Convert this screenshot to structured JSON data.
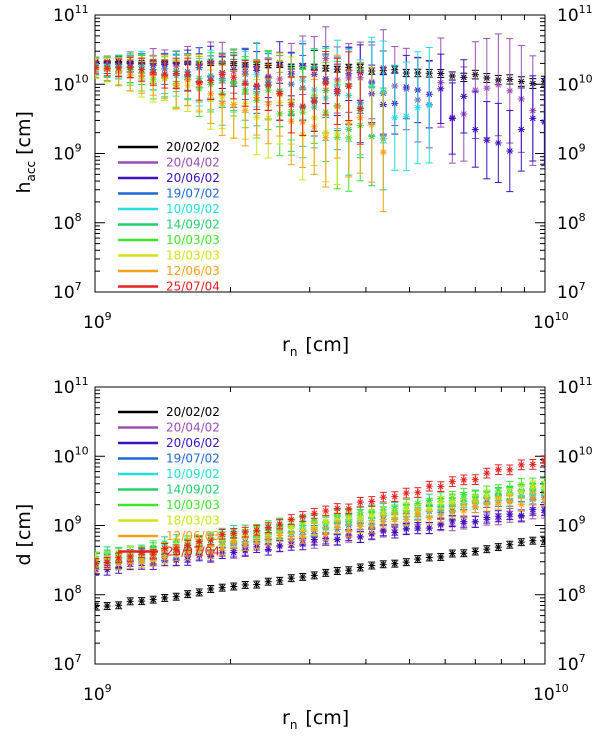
{
  "chart_data": [
    {
      "type": "scatter",
      "panel": "top",
      "title": "",
      "xlabel": "r",
      "xlabel_sub": "n",
      "xlabel_unit": "[cm]",
      "ylabel": "h",
      "ylabel_sub": "acc",
      "ylabel_unit": "[cm]",
      "xscale": "log",
      "yscale": "log",
      "xlim": [
        1000000000.0,
        10000000000.0
      ],
      "ylim": [
        10000000.0,
        100000000000.0
      ],
      "x_ticks": [
        {
          "base": "10",
          "exp": "9"
        },
        {
          "base": "10",
          "exp": "10"
        }
      ],
      "y_ticks": [
        {
          "base": "10",
          "exp": "7"
        },
        {
          "base": "10",
          "exp": "8"
        },
        {
          "base": "10",
          "exp": "9"
        },
        {
          "base": "10",
          "exp": "10"
        },
        {
          "base": "10",
          "exp": "11"
        }
      ],
      "legend_position": "bottom-left",
      "series": [
        {
          "name": "20/02/02",
          "color": "#000000",
          "y_start": 21000000000.0,
          "y_end": 10500000000.0,
          "curve": 2.0,
          "scatter": 0.02,
          "cutoff": 10000000000.0,
          "err": 0.04
        },
        {
          "name": "20/04/02",
          "color": "#9c4fb5",
          "y_start": 20000000000.0,
          "y_end": 2000000000.0,
          "curve": 3.0,
          "scatter": 0.25,
          "cutoff": 9500000000.0,
          "err": 0.45
        },
        {
          "name": "20/06/02",
          "color": "#3d10c4",
          "y_start": 20000000000.0,
          "y_end": 1500000000.0,
          "curve": 2.5,
          "scatter": 0.2,
          "cutoff": 10000000000.0,
          "err": 0.35
        },
        {
          "name": "19/07/02",
          "color": "#1e6ad6",
          "y_start": 19000000000.0,
          "y_end": 1200000000.0,
          "curve": 1.8,
          "scatter": 0.25,
          "cutoff": 4600000000.0,
          "err": 0.5
        },
        {
          "name": "10/09/02",
          "color": "#22dede",
          "y_start": 18500000000.0,
          "y_end": 1000000000.0,
          "curve": 1.5,
          "scatter": 0.3,
          "cutoff": 5800000000.0,
          "err": 0.6
        },
        {
          "name": "14/09/02",
          "color": "#22d06a",
          "y_start": 18000000000.0,
          "y_end": 500000000.0,
          "curve": 1.4,
          "scatter": 0.3,
          "cutoff": 4600000000.0,
          "err": 0.6
        },
        {
          "name": "10/03/03",
          "color": "#3ee62a",
          "y_start": 17500000000.0,
          "y_end": 400000000.0,
          "curve": 1.3,
          "scatter": 0.35,
          "cutoff": 3900000000.0,
          "err": 0.7
        },
        {
          "name": "18/03/03",
          "color": "#cfe31a",
          "y_start": 17000000000.0,
          "y_end": 300000000.0,
          "curve": 1.2,
          "scatter": 0.35,
          "cutoff": 3500000000.0,
          "err": 0.7
        },
        {
          "name": "12/06/03",
          "color": "#f7a01a",
          "y_start": 17000000000.0,
          "y_end": 300000000.0,
          "curve": 1.2,
          "scatter": 0.35,
          "cutoff": 4400000000.0,
          "err": 0.7
        },
        {
          "name": "25/07/04",
          "color": "#e82020",
          "y_start": 17500000000.0,
          "y_end": 1000000000.0,
          "curve": 1.5,
          "scatter": 0.3,
          "cutoff": 4100000000.0,
          "err": 0.45
        }
      ]
    },
    {
      "type": "scatter",
      "panel": "bottom",
      "title": "",
      "xlabel": "r",
      "xlabel_sub": "n",
      "xlabel_unit": "[cm]",
      "ylabel": "d",
      "ylabel_sub": "",
      "ylabel_unit": "[cm]",
      "xscale": "log",
      "yscale": "log",
      "xlim": [
        1000000000.0,
        10000000000.0
      ],
      "ylim": [
        10000000.0,
        100000000000.0
      ],
      "x_ticks": [
        {
          "base": "10",
          "exp": "9"
        },
        {
          "base": "10",
          "exp": "10"
        }
      ],
      "y_ticks": [
        {
          "base": "10",
          "exp": "7"
        },
        {
          "base": "10",
          "exp": "8"
        },
        {
          "base": "10",
          "exp": "9"
        },
        {
          "base": "10",
          "exp": "10"
        },
        {
          "base": "10",
          "exp": "11"
        }
      ],
      "legend_position": "top-left",
      "series": [
        {
          "name": "20/02/02",
          "color": "#000000",
          "y_start": 65000000.0,
          "y_end": 620000000.0,
          "scatter": 0.02,
          "err": 0.05
        },
        {
          "name": "20/04/02",
          "color": "#9c4fb5",
          "y_start": 250000000.0,
          "y_end": 1600000000.0,
          "scatter": 0.04,
          "err": 0.08
        },
        {
          "name": "20/06/02",
          "color": "#3d10c4",
          "y_start": 220000000.0,
          "y_end": 1700000000.0,
          "scatter": 0.04,
          "err": 0.08
        },
        {
          "name": "19/07/02",
          "color": "#1e6ad6",
          "y_start": 280000000.0,
          "y_end": 2800000000.0,
          "scatter": 0.05,
          "err": 0.08
        },
        {
          "name": "10/09/02",
          "color": "#22dede",
          "y_start": 320000000.0,
          "y_end": 3200000000.0,
          "scatter": 0.05,
          "err": 0.09
        },
        {
          "name": "14/09/02",
          "color": "#22d06a",
          "y_start": 350000000.0,
          "y_end": 3800000000.0,
          "scatter": 0.05,
          "err": 0.09
        },
        {
          "name": "10/03/03",
          "color": "#3ee62a",
          "y_start": 340000000.0,
          "y_end": 4000000000.0,
          "scatter": 0.05,
          "err": 0.09
        },
        {
          "name": "18/03/03",
          "color": "#cfe31a",
          "y_start": 300000000.0,
          "y_end": 3500000000.0,
          "scatter": 0.05,
          "err": 0.09
        },
        {
          "name": "12/06/03",
          "color": "#f7a01a",
          "y_start": 260000000.0,
          "y_end": 2500000000.0,
          "scatter": 0.05,
          "err": 0.09
        },
        {
          "name": "25/07/04",
          "color": "#e82020",
          "y_start": 260000000.0,
          "y_end": 8500000000.0,
          "scatter": 0.04,
          "err": 0.07
        }
      ]
    }
  ]
}
